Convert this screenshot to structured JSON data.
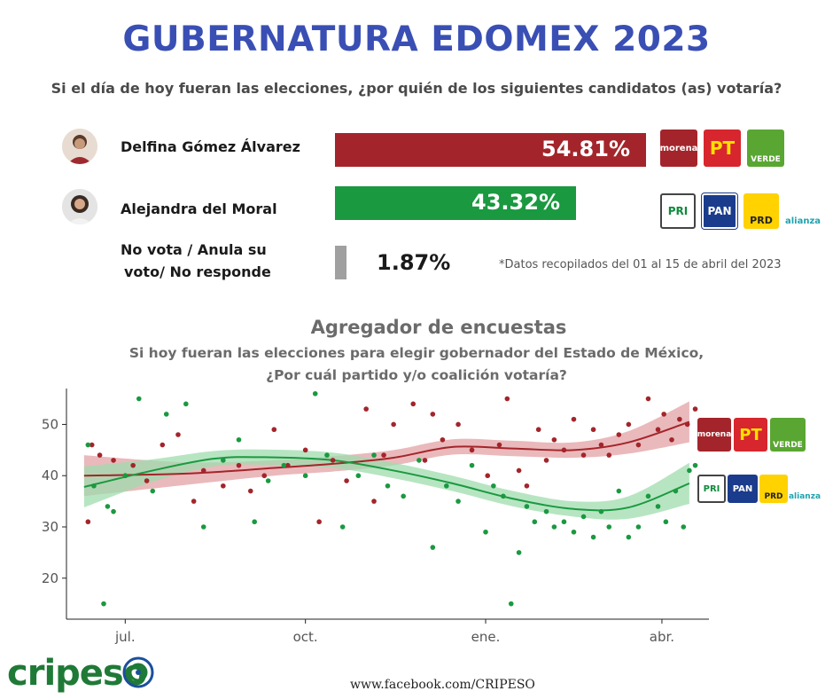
{
  "header": {
    "title": "GUBERNATURA EDOMEX 2023",
    "question": "Si el día de hoy fueran las elecciones, ¿por quién de los siguientes candidatos (as) votaría?"
  },
  "candidates": [
    {
      "name": "Delfina Gómez Álvarez",
      "value": 54.81,
      "label": "54.81%",
      "color": "#a3252b",
      "parties": [
        "morena",
        "PT",
        "VERDE"
      ]
    },
    {
      "name": "Alejandra del Moral",
      "value": 43.32,
      "label": "43.32%",
      "color": "#1a9940",
      "parties": [
        "PRI",
        "PAN",
        "PRD",
        "alianza"
      ]
    },
    {
      "name_line1": "No vota / Anula su",
      "name_line2": "voto/ No responde",
      "value": 1.87,
      "label": "1.87%",
      "color": "#a0a0a0"
    }
  ],
  "note": "*Datos recopilados del 01 al 15 de abril del 2023",
  "aggregator": {
    "title": "Agregador de encuestas",
    "question_line1": "Si hoy fueran las elecciones para elegir gobernador del Estado de México,",
    "question_line2": "¿Por cuál partido y/o coalición votaría?"
  },
  "party_logos": {
    "morena": {
      "text": "morena",
      "bg": "#a3252b",
      "fg": "#ffffff"
    },
    "PT": {
      "text": "PT",
      "bg": "#d7262d",
      "fg": "#ffe000"
    },
    "VERDE": {
      "text": "VERDE",
      "bg": "#5aa632",
      "fg": "#ffffff"
    },
    "PRI": {
      "text": "PRI",
      "bg": "#ffffff",
      "fg": "#0f8a3c"
    },
    "PAN": {
      "text": "PAN",
      "bg": "#1b3c8c",
      "fg": "#ffffff"
    },
    "PRD": {
      "text": "PRD",
      "bg": "#ffd200",
      "fg": "#222222"
    },
    "alianza": {
      "text": "alianza",
      "bg": "#ffffff",
      "fg": "#1fa3b0"
    }
  },
  "chart_data": {
    "type": "scatter",
    "xlabel": "",
    "ylabel": "",
    "x_ticks": [
      "jul.",
      "oct.",
      "ene.",
      "abr."
    ],
    "x_range": [
      "2022-06-01",
      "2023-04-25"
    ],
    "yticks": [
      20,
      30,
      40,
      50
    ],
    "ylim": [
      12,
      57
    ],
    "grid": false,
    "series": [
      {
        "color": "#a3252b",
        "trend": [
          [
            "2022-06-10",
            40.0
          ],
          [
            "2022-08-01",
            40.4
          ],
          [
            "2022-09-15",
            41.5
          ],
          [
            "2022-10-15",
            42.3
          ],
          [
            "2022-11-15",
            43.5
          ],
          [
            "2022-12-15",
            45.6
          ],
          [
            "2023-01-15",
            45.3
          ],
          [
            "2023-02-15",
            45.0
          ],
          [
            "2023-03-15",
            46.5
          ],
          [
            "2023-04-15",
            50.5
          ]
        ],
        "points": [
          [
            "2022-06-12",
            31
          ],
          [
            "2022-06-14",
            46
          ],
          [
            "2022-06-18",
            44
          ],
          [
            "2022-06-25",
            43
          ],
          [
            "2022-07-01",
            40
          ],
          [
            "2022-07-05",
            42
          ],
          [
            "2022-07-12",
            39
          ],
          [
            "2022-07-20",
            46
          ],
          [
            "2022-07-28",
            48
          ],
          [
            "2022-08-05",
            35
          ],
          [
            "2022-08-10",
            41
          ],
          [
            "2022-08-20",
            38
          ],
          [
            "2022-08-28",
            42
          ],
          [
            "2022-09-03",
            37
          ],
          [
            "2022-09-10",
            40
          ],
          [
            "2022-09-15",
            49
          ],
          [
            "2022-09-22",
            42
          ],
          [
            "2022-10-01",
            45
          ],
          [
            "2022-10-08",
            31
          ],
          [
            "2022-10-15",
            43
          ],
          [
            "2022-10-22",
            39
          ],
          [
            "2022-11-01",
            53
          ],
          [
            "2022-11-05",
            35
          ],
          [
            "2022-11-10",
            44
          ],
          [
            "2022-11-15",
            50
          ],
          [
            "2022-11-25",
            54
          ],
          [
            "2022-12-01",
            43
          ],
          [
            "2022-12-05",
            52
          ],
          [
            "2022-12-10",
            47
          ],
          [
            "2022-12-18",
            50
          ],
          [
            "2022-12-25",
            45
          ],
          [
            "2023-01-02",
            40
          ],
          [
            "2023-01-08",
            46
          ],
          [
            "2023-01-12",
            55
          ],
          [
            "2023-01-18",
            41
          ],
          [
            "2023-01-22",
            38
          ],
          [
            "2023-01-28",
            49
          ],
          [
            "2023-02-01",
            43
          ],
          [
            "2023-02-05",
            47
          ],
          [
            "2023-02-10",
            45
          ],
          [
            "2023-02-15",
            51
          ],
          [
            "2023-02-20",
            44
          ],
          [
            "2023-02-25",
            49
          ],
          [
            "2023-03-01",
            46
          ],
          [
            "2023-03-05",
            44
          ],
          [
            "2023-03-10",
            48
          ],
          [
            "2023-03-15",
            50
          ],
          [
            "2023-03-20",
            46
          ],
          [
            "2023-03-25",
            55
          ],
          [
            "2023-03-30",
            49
          ],
          [
            "2023-04-02",
            52
          ],
          [
            "2023-04-06",
            47
          ],
          [
            "2023-04-10",
            51
          ],
          [
            "2023-04-14",
            50
          ],
          [
            "2023-04-18",
            53
          ]
        ]
      },
      {
        "color": "#1a9940",
        "trend": [
          [
            "2022-06-10",
            37.8
          ],
          [
            "2022-07-15",
            41.0
          ],
          [
            "2022-08-15",
            43.3
          ],
          [
            "2022-09-10",
            43.6
          ],
          [
            "2022-10-15",
            43.0
          ],
          [
            "2022-11-15",
            41.0
          ],
          [
            "2022-12-15",
            38.5
          ],
          [
            "2023-01-15",
            35.5
          ],
          [
            "2023-02-15",
            33.5
          ],
          [
            "2023-03-15",
            33.8
          ],
          [
            "2023-04-15",
            38.5
          ]
        ],
        "points": [
          [
            "2022-06-12",
            46
          ],
          [
            "2022-06-15",
            38
          ],
          [
            "2022-06-20",
            15
          ],
          [
            "2022-06-22",
            34
          ],
          [
            "2022-06-25",
            33
          ],
          [
            "2022-07-01",
            40
          ],
          [
            "2022-07-08",
            55
          ],
          [
            "2022-07-15",
            37
          ],
          [
            "2022-07-22",
            52
          ],
          [
            "2022-08-01",
            54
          ],
          [
            "2022-08-10",
            30
          ],
          [
            "2022-08-20",
            43
          ],
          [
            "2022-08-28",
            47
          ],
          [
            "2022-09-05",
            31
          ],
          [
            "2022-09-12",
            39
          ],
          [
            "2022-09-20",
            42
          ],
          [
            "2022-10-01",
            40
          ],
          [
            "2022-10-06",
            56
          ],
          [
            "2022-10-12",
            44
          ],
          [
            "2022-10-20",
            30
          ],
          [
            "2022-10-28",
            40
          ],
          [
            "2022-11-05",
            44
          ],
          [
            "2022-11-12",
            38
          ],
          [
            "2022-11-20",
            36
          ],
          [
            "2022-11-28",
            43
          ],
          [
            "2022-12-05",
            26
          ],
          [
            "2022-12-12",
            38
          ],
          [
            "2022-12-18",
            35
          ],
          [
            "2022-12-25",
            42
          ],
          [
            "2023-01-01",
            29
          ],
          [
            "2023-01-05",
            38
          ],
          [
            "2023-01-10",
            36
          ],
          [
            "2023-01-14",
            15
          ],
          [
            "2023-01-18",
            25
          ],
          [
            "2023-01-22",
            34
          ],
          [
            "2023-01-26",
            31
          ],
          [
            "2023-02-01",
            33
          ],
          [
            "2023-02-05",
            30
          ],
          [
            "2023-02-10",
            31
          ],
          [
            "2023-02-15",
            29
          ],
          [
            "2023-02-20",
            32
          ],
          [
            "2023-02-25",
            28
          ],
          [
            "2023-03-01",
            33
          ],
          [
            "2023-03-05",
            30
          ],
          [
            "2023-03-10",
            37
          ],
          [
            "2023-03-15",
            28
          ],
          [
            "2023-03-20",
            30
          ],
          [
            "2023-03-25",
            36
          ],
          [
            "2023-03-30",
            34
          ],
          [
            "2023-04-03",
            31
          ],
          [
            "2023-04-08",
            37
          ],
          [
            "2023-04-12",
            30
          ],
          [
            "2023-04-15",
            41
          ],
          [
            "2023-04-18",
            42
          ]
        ]
      }
    ]
  },
  "footer": {
    "brand": "cripeso",
    "url": "www.facebook.com/CRIPESO"
  }
}
